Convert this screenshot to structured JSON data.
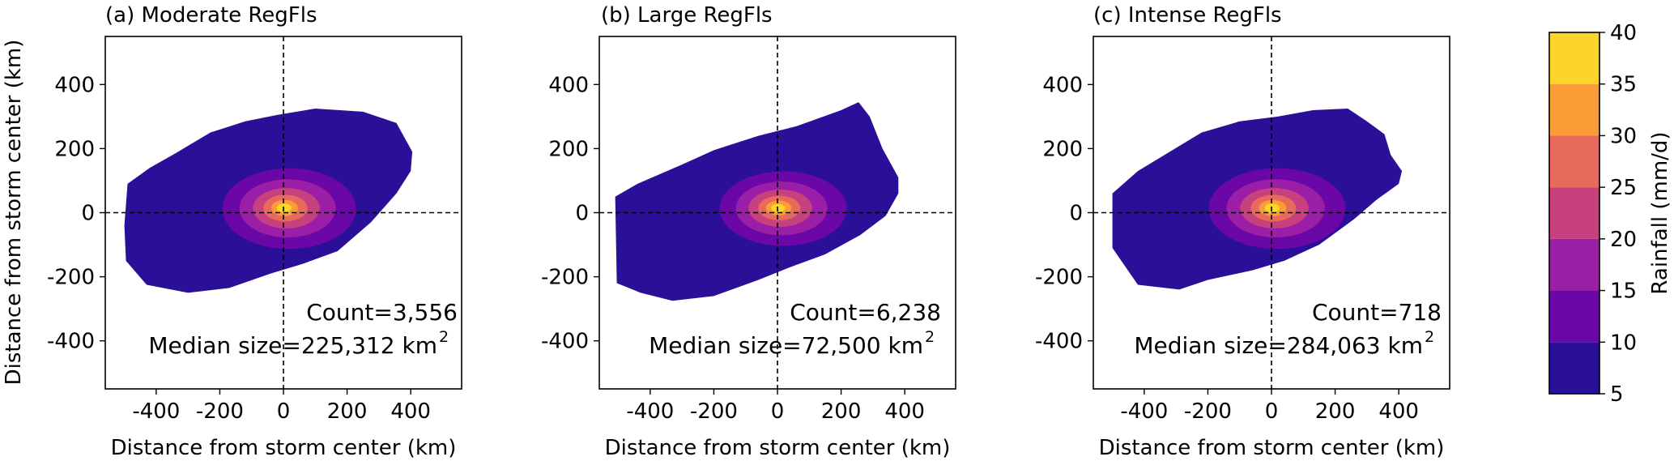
{
  "colors": {
    "levels": [
      "#2b0f98",
      "#6a07a6",
      "#9a1fa6",
      "#c8417f",
      "#e86a5b",
      "#fb9d36",
      "#fbd52a"
    ],
    "crosshair": "#000000"
  },
  "chart_data": [
    {
      "type": "contour",
      "title": "(a) Moderate RegFls",
      "xlabel": "Distance from storm center (km)",
      "ylabel": "Distance from storm center (km)",
      "xlim": [
        -560,
        560
      ],
      "ylim": [
        -550,
        550
      ],
      "xticks": [
        -400,
        -200,
        0,
        200,
        400
      ],
      "yticks": [
        -400,
        -200,
        0,
        200,
        400
      ],
      "count_label": "Count=3,556",
      "median_label": "Median size=225,312 km",
      "median_unit_sup": "2",
      "contour_levels_mm_per_d": [
        5,
        10,
        15,
        20,
        25,
        30,
        35
      ],
      "outer_extent_km": [
        [
          -490,
          90
        ],
        [
          -420,
          140
        ],
        [
          -340,
          185
        ],
        [
          -230,
          250
        ],
        [
          -120,
          285
        ],
        [
          -20,
          305
        ],
        [
          100,
          325
        ],
        [
          250,
          315
        ],
        [
          355,
          280
        ],
        [
          405,
          190
        ],
        [
          400,
          130
        ],
        [
          355,
          60
        ],
        [
          275,
          -30
        ],
        [
          170,
          -120
        ],
        [
          60,
          -160
        ],
        [
          -40,
          -190
        ],
        [
          -170,
          -235
        ],
        [
          -300,
          -250
        ],
        [
          -430,
          -225
        ],
        [
          -495,
          -150
        ],
        [
          -500,
          -40
        ]
      ],
      "core": {
        "center": [
          0,
          15
        ],
        "rx_10": [
          -210,
          210
        ],
        "ry_10": [
          -120,
          145
        ],
        "rx_35": [
          -25,
          25
        ]
      }
    },
    {
      "type": "contour",
      "title": "(b) Large RegFls",
      "xlabel": "Distance from storm center (km)",
      "xlim": [
        -560,
        560
      ],
      "ylim": [
        -550,
        550
      ],
      "xticks": [
        -400,
        -200,
        0,
        200,
        400
      ],
      "yticks": [
        -400,
        -200,
        0,
        200,
        400
      ],
      "count_label": "Count=6,238",
      "median_label": "Median size=72,500 km",
      "median_unit_sup": "2",
      "contour_levels_mm_per_d": [
        5,
        10,
        15,
        20,
        25,
        30,
        35
      ],
      "outer_extent_km": [
        [
          -510,
          50
        ],
        [
          -440,
          90
        ],
        [
          -300,
          150
        ],
        [
          -200,
          195
        ],
        [
          -60,
          240
        ],
        [
          60,
          270
        ],
        [
          200,
          320
        ],
        [
          255,
          345
        ],
        [
          290,
          300
        ],
        [
          330,
          200
        ],
        [
          380,
          110
        ],
        [
          380,
          60
        ],
        [
          340,
          -10
        ],
        [
          260,
          -70
        ],
        [
          150,
          -130
        ],
        [
          40,
          -170
        ],
        [
          -60,
          -210
        ],
        [
          -200,
          -260
        ],
        [
          -330,
          -275
        ],
        [
          -430,
          -250
        ],
        [
          -505,
          -220
        ]
      ],
      "core": {
        "center": [
          0,
          15
        ],
        "rx_10": [
          -200,
          200
        ],
        "ry_10": [
          -110,
          135
        ],
        "rx_35": [
          -25,
          25
        ]
      }
    },
    {
      "type": "contour",
      "title": "(c) Intense RegFls",
      "xlabel": "Distance from storm center (km)",
      "xlim": [
        -560,
        560
      ],
      "ylim": [
        -550,
        550
      ],
      "xticks": [
        -400,
        -200,
        0,
        200,
        400
      ],
      "yticks": [
        -400,
        -200,
        0,
        200,
        400
      ],
      "count_label": "Count=718",
      "median_label": "Median size=284,063 km",
      "median_unit_sup": "2",
      "contour_levels_mm_per_d": [
        5,
        10,
        15,
        20,
        25,
        30,
        35
      ],
      "outer_extent_km": [
        [
          -500,
          60
        ],
        [
          -420,
          130
        ],
        [
          -320,
          190
        ],
        [
          -220,
          250
        ],
        [
          -100,
          285
        ],
        [
          20,
          300
        ],
        [
          130,
          320
        ],
        [
          240,
          325
        ],
        [
          300,
          285
        ],
        [
          355,
          245
        ],
        [
          375,
          180
        ],
        [
          410,
          130
        ],
        [
          400,
          90
        ],
        [
          330,
          40
        ],
        [
          260,
          -20
        ],
        [
          150,
          -100
        ],
        [
          40,
          -150
        ],
        [
          -60,
          -180
        ],
        [
          -200,
          -210
        ],
        [
          -290,
          -240
        ],
        [
          -420,
          -225
        ],
        [
          -500,
          -110
        ]
      ],
      "core": {
        "center": [
          0,
          15
        ],
        "rx_10": [
          -215,
          215
        ],
        "ry_10": [
          -120,
          145
        ],
        "rx_35": [
          -25,
          25
        ]
      }
    },
    {
      "type": "colorbar",
      "label": "Rainfall (mm/d)",
      "ticks": [
        5,
        10,
        15,
        20,
        25,
        30,
        35,
        40
      ],
      "range": [
        5,
        40
      ]
    }
  ]
}
